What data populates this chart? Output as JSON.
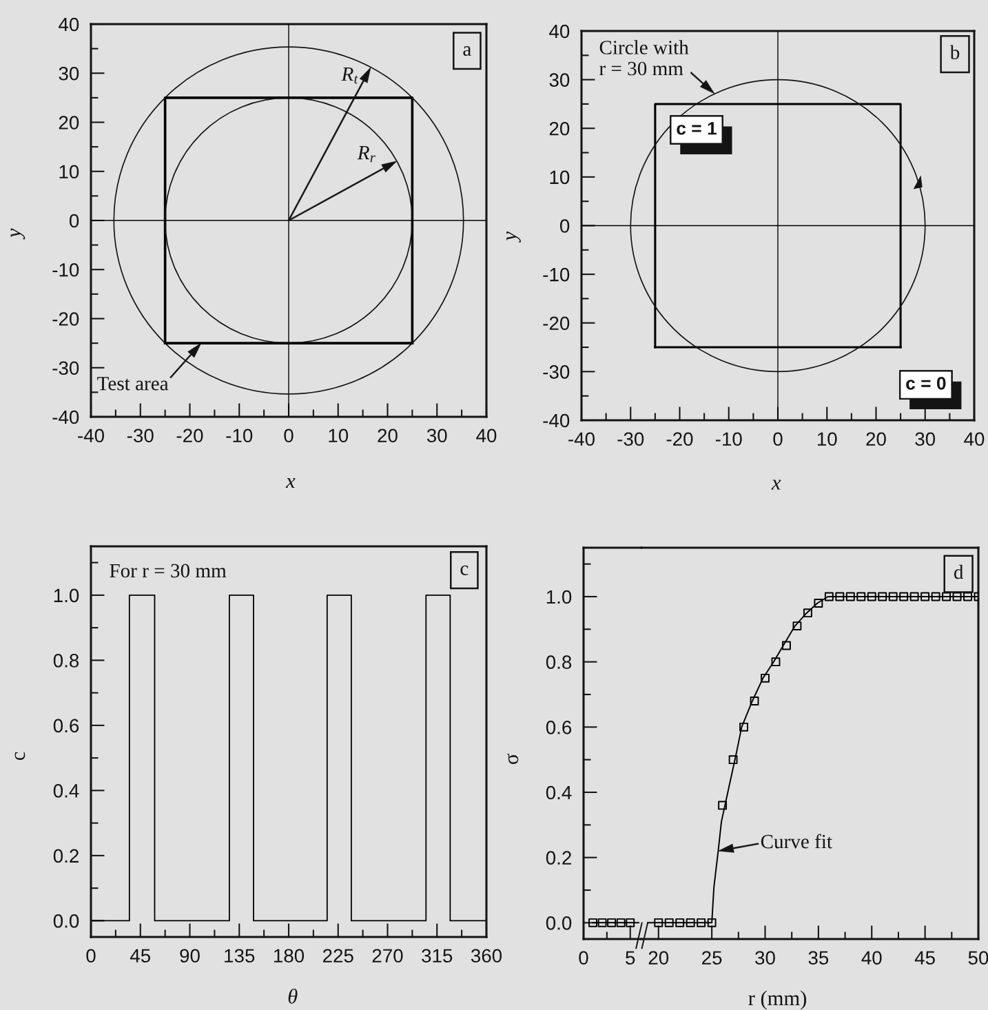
{
  "chart_data": [
    {
      "type": "line",
      "xlabel": "x",
      "ylabel": "y",
      "xlim": [
        -40,
        40
      ],
      "ylim": [
        -40,
        40
      ],
      "xticks": [
        -40,
        {
          "value": -35,
          "label": null
        },
        -30,
        {
          "value": -25,
          "label": null
        },
        -20,
        {
          "value": -15,
          "label": null
        },
        -10,
        {
          "value": -5,
          "label": null
        },
        0,
        {
          "value": 5,
          "label": null
        },
        10,
        {
          "value": 15,
          "label": null
        },
        20,
        {
          "value": 25,
          "label": null
        },
        30,
        {
          "value": 35,
          "label": null
        },
        40
      ],
      "yticks": [
        -40,
        {
          "value": -35,
          "label": null
        },
        -30,
        {
          "value": -25,
          "label": null
        },
        -20,
        {
          "value": -15,
          "label": null
        },
        -10,
        {
          "value": -5,
          "label": null
        },
        0,
        {
          "value": 5,
          "label": null
        },
        10,
        {
          "value": 15,
          "label": null
        },
        20,
        {
          "value": 25,
          "label": null
        },
        30,
        {
          "value": 35,
          "label": null
        },
        40
      ],
      "series": [
        {
          "color": "#000000",
          "x": [
            -40,
            40
          ],
          "values": [
            0,
            0
          ]
        },
        {
          "color": "#000000",
          "x": [
            0,
            0
          ],
          "values": [
            -40,
            40
          ]
        },
        {
          "color": "#000000",
          "x": [
            -25,
            -25,
            25,
            25
          ],
          "values": [
            -25,
            25,
            25,
            -25
          ]
        },
        {
          "color": "#000000",
          "x": [
            -25,
            25
          ],
          "values": [
            -25,
            -25
          ]
        }
      ],
      "annotations": [
        "R$_{t}$",
        "R$_{r}$",
        {
          "text": "Test area",
          "x": -17.7,
          "y": -25
        },
        "a"
      ]
    },
    {
      "type": "line",
      "xlabel": "x",
      "ylabel": "y",
      "xlim": [
        -40,
        40
      ],
      "ylim": [
        -40,
        40
      ],
      "xticks": [
        -40,
        {
          "value": -35,
          "label": null
        },
        -30,
        {
          "value": -25,
          "label": null
        },
        -20,
        {
          "value": -15,
          "label": null
        },
        -10,
        {
          "value": -5,
          "label": null
        },
        0,
        {
          "value": 5,
          "label": null
        },
        10,
        {
          "value": 15,
          "label": null
        },
        20,
        {
          "value": 25,
          "label": null
        },
        30,
        {
          "value": 35,
          "label": null
        },
        40
      ],
      "yticks": [
        -40,
        {
          "value": -35,
          "label": null
        },
        -30,
        {
          "value": -25,
          "label": null
        },
        -20,
        {
          "value": -15,
          "label": null
        },
        -10,
        {
          "value": -5,
          "label": null
        },
        0,
        {
          "value": 5,
          "label": null
        },
        10,
        {
          "value": 15,
          "label": null
        },
        20,
        {
          "value": 25,
          "label": null
        },
        30,
        {
          "value": 35,
          "label": null
        },
        40
      ],
      "series": [
        {
          "color": "#000000",
          "x": [
            -40,
            40
          ],
          "values": [
            0,
            0
          ]
        },
        {
          "color": "#000000",
          "x": [
            0,
            0
          ],
          "values": [
            -40,
            40
          ]
        },
        {
          "color": "#000000",
          "x": [
            -25,
            -25,
            25,
            25
          ],
          "values": [
            -25,
            25,
            25,
            -25
          ]
        },
        {
          "color": "#000000",
          "x": [
            -25,
            25
          ],
          "values": [
            -25,
            -25
          ]
        }
      ],
      "annotations": [
        "Circle with\nr = 30 mm",
        "c = 1",
        "c = 0",
        "b"
      ]
    },
    {
      "type": "line",
      "xlabel": "θ",
      "ylabel": "c",
      "xlim": [
        0,
        360
      ],
      "ylim": [
        -0.05,
        1.15
      ],
      "xticks": [
        0,
        {
          "value": 22.5,
          "label": null
        },
        45,
        {
          "value": 67.5,
          "label": null
        },
        90,
        {
          "value": 112.5,
          "label": null
        },
        135,
        {
          "value": 157.5,
          "label": null
        },
        180,
        {
          "value": 202.5,
          "label": null
        },
        225,
        {
          "value": 247.5,
          "label": null
        },
        270,
        {
          "value": 292.5,
          "label": null
        },
        315,
        {
          "value": 337.5,
          "label": null
        },
        360
      ],
      "yticks": [
        {
          "value": 0,
          "label": "0.0"
        },
        {
          "value": 0.1,
          "label": null
        },
        0.2,
        {
          "value": 0.3,
          "label": null
        },
        0.4,
        {
          "value": 0.5,
          "label": null
        },
        0.6,
        {
          "value": 0.7,
          "label": null
        },
        0.8,
        {
          "value": 0.9,
          "label": null
        },
        {
          "value": 1,
          "label": "1.0"
        },
        {
          "value": 1.1,
          "label": null
        }
      ],
      "x": [
        0,
        35,
        35,
        58,
        58,
        126,
        126,
        148,
        148,
        215,
        215,
        237,
        237,
        305,
        305,
        327,
        327,
        360
      ],
      "values": [
        0,
        0,
        1,
        1,
        0,
        0,
        1,
        1,
        0,
        0,
        1,
        1,
        0,
        0,
        1,
        1,
        0,
        0
      ],
      "color": "#000000",
      "annotations": [
        "For r = 30 mm",
        "c"
      ]
    },
    {
      "type": "line",
      "ylabel": "σ",
      "xlim": [
        0,
        6.2
      ],
      "ylim": [
        -0.05,
        1.15
      ],
      "xticks": [
        0,
        {
          "value": 2.5,
          "label": null
        },
        5
      ],
      "yticks": [
        {
          "value": 0,
          "label": "0.0"
        },
        {
          "value": 0.1,
          "label": null
        },
        0.2,
        {
          "value": 0.3,
          "label": null
        },
        0.4,
        {
          "value": 0.5,
          "label": null
        },
        0.6,
        {
          "value": 0.7,
          "label": null
        },
        0.8,
        {
          "value": 0.9,
          "label": null
        },
        {
          "value": 1,
          "label": "1.0"
        },
        {
          "value": 1.1,
          "label": null
        }
      ],
      "series": [
        {
          "type": "scatter",
          "marker": "square",
          "color": "#000000",
          "x": [
            1,
            2,
            3,
            4,
            5
          ],
          "values": [
            0,
            0,
            0,
            0,
            0
          ]
        },
        {
          "type": "line",
          "color": "#000000",
          "x": [
            1,
            5.9
          ],
          "values": [
            0,
            0
          ]
        }
      ]
    },
    {
      "type": "line",
      "xlabel": "r (mm)",
      "xlim": [
        18.4,
        50
      ],
      "ylim": [
        -0.05,
        1.15
      ],
      "tick_labels": "x",
      "xticks": [
        20,
        25,
        {
          "value": 27.5,
          "label": null
        },
        30,
        {
          "value": 32.5,
          "label": null
        },
        35,
        {
          "value": 37.5,
          "label": null
        },
        40,
        {
          "value": 42.5,
          "label": null
        },
        45,
        {
          "value": 47.5,
          "label": null
        },
        50
      ],
      "series": [
        {
          "type": "scatter",
          "marker": "square",
          "color": "#000000",
          "x": [
            20,
            21,
            22,
            23,
            24,
            25,
            26,
            27,
            28,
            29,
            30,
            31,
            32,
            33,
            34,
            35,
            36,
            37,
            38,
            39,
            40,
            41,
            42,
            43,
            44,
            45,
            46,
            47,
            48,
            49,
            50
          ],
          "values": [
            0,
            0,
            0,
            0,
            0,
            0,
            0.36,
            0.5,
            0.6,
            0.68,
            0.75,
            0.8,
            0.85,
            0.91,
            0.95,
            0.98,
            1,
            1,
            1,
            1,
            1,
            1,
            1,
            1,
            1,
            1,
            1,
            1,
            1,
            1,
            1
          ]
        },
        {
          "type": "line",
          "color": "#000000",
          "x": [
            19,
            25,
            25.2,
            25.6,
            25.9,
            26.3,
            26.9,
            27.3,
            27.8,
            28.8,
            29.8,
            30.8,
            31.7,
            32.8,
            33.9,
            34.9,
            35.9,
            50
          ],
          "values": [
            0,
            0,
            0.11,
            0.22,
            0.31,
            0.37,
            0.46,
            0.52,
            0.6,
            0.68,
            0.75,
            0.8,
            0.85,
            0.91,
            0.95,
            0.98,
            1,
            1
          ]
        }
      ],
      "annotations": [
        {
          "text": "Curve fit",
          "x": 25.6,
          "y": 0.22
        },
        "d"
      ]
    }
  ]
}
